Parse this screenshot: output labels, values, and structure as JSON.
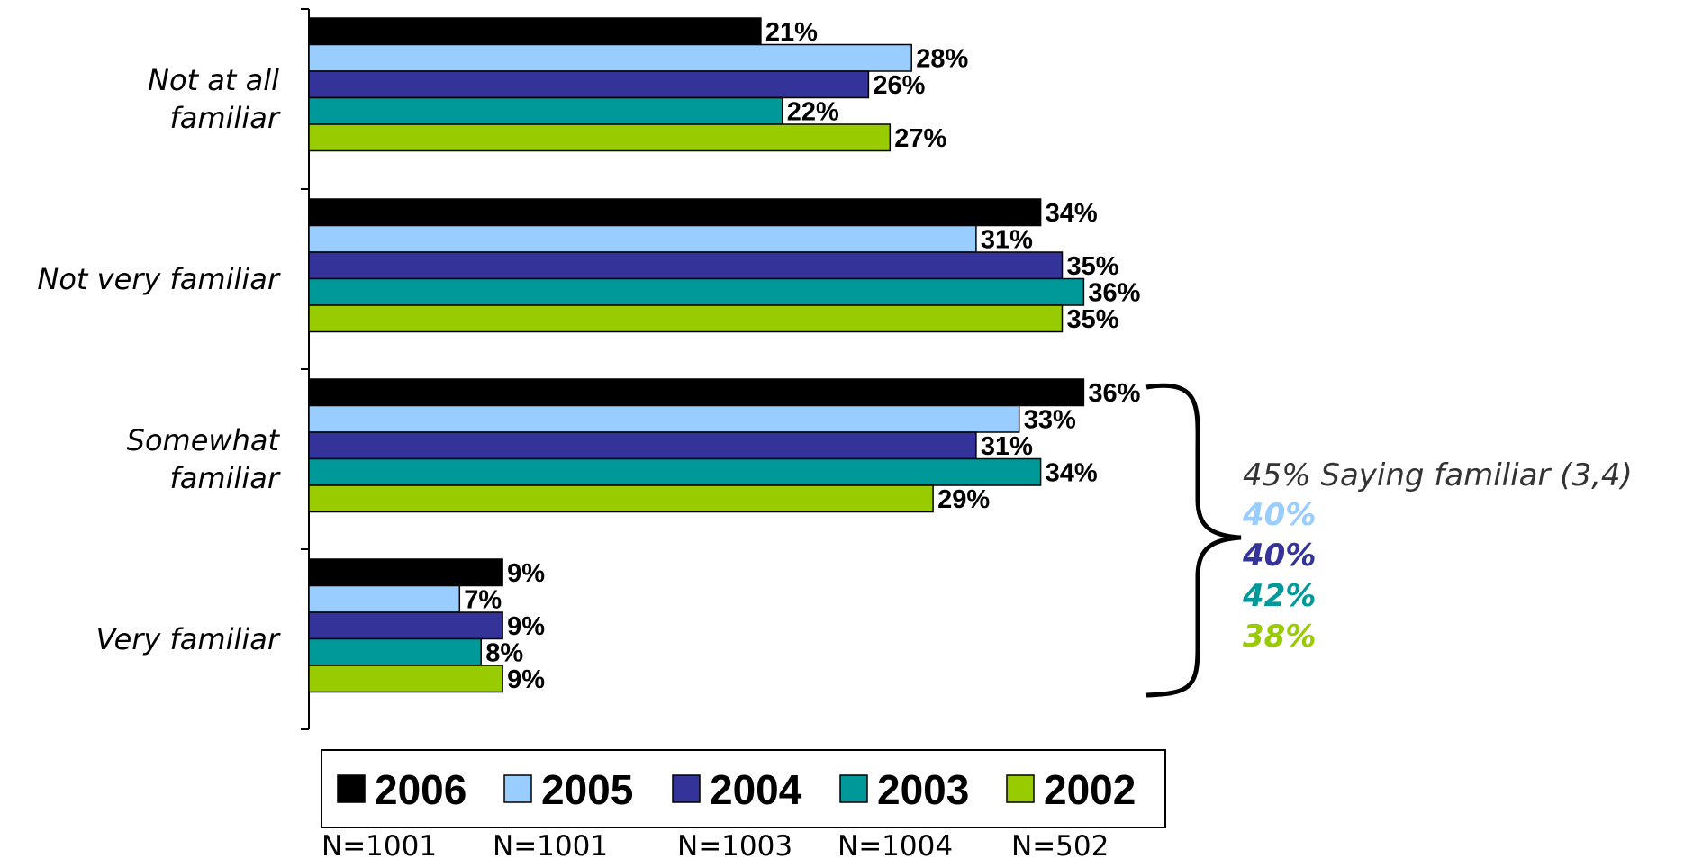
{
  "chart_data": {
    "type": "bar",
    "orientation": "horizontal",
    "categories": [
      "Not at all familiar",
      "Not very familiar",
      "Somewhat familiar",
      "Very familiar"
    ],
    "series": [
      {
        "name": "2006",
        "n_label": "N=1001",
        "color": "#000000",
        "values": [
          21,
          34,
          36,
          9
        ],
        "labels": [
          "21%",
          "34%",
          "36%",
          "9%"
        ]
      },
      {
        "name": "2005",
        "n_label": "N=1001",
        "color": "#99CCFF",
        "values": [
          28,
          31,
          33,
          7
        ],
        "labels": [
          "28%",
          "31%",
          "33%",
          "7%"
        ]
      },
      {
        "name": "2004",
        "n_label": "N=1003",
        "color": "#333399",
        "values": [
          26,
          35,
          31,
          9
        ],
        "labels": [
          "26%",
          "35%",
          "31%",
          "9%"
        ]
      },
      {
        "name": "2003",
        "n_label": "N=1004",
        "color": "#009999",
        "values": [
          22,
          36,
          34,
          8
        ],
        "labels": [
          "22%",
          "36%",
          "34%",
          "8%"
        ]
      },
      {
        "name": "2002",
        "n_label": "N=502",
        "color": "#99CC00",
        "values": [
          27,
          35,
          29,
          9
        ],
        "labels": [
          "27%",
          "35%",
          "29%",
          "9%"
        ]
      }
    ],
    "xlim": [
      0,
      37
    ],
    "grid": false,
    "legend_position": "bottom",
    "bracket_note": {
      "text": "45% Saying familiar (3,4)",
      "values": [
        {
          "label": "40%",
          "color": "#99CCFF"
        },
        {
          "label": "40%",
          "color": "#333399"
        },
        {
          "label": "42%",
          "color": "#009999"
        },
        {
          "label": "38%",
          "color": "#99CC00"
        }
      ]
    }
  }
}
